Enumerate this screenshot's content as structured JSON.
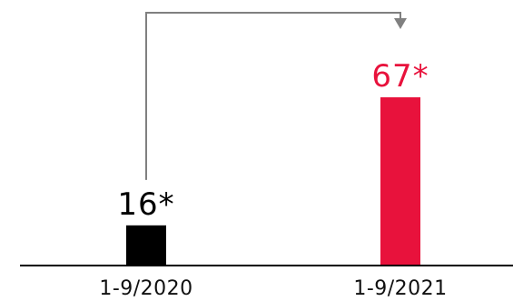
{
  "chart_data": {
    "type": "bar",
    "categories": [
      "1-9/2020",
      "1-9/2021"
    ],
    "values": [
      16,
      67
    ],
    "value_labels": [
      "16*",
      "67*"
    ],
    "bar_colors": [
      "#000000",
      "#e8123c"
    ],
    "value_label_colors": [
      "#000000",
      "#e8123c"
    ],
    "arrow_color": "#808080",
    "axis_color": "#000000",
    "grid": false,
    "title": "",
    "xlabel": "",
    "ylabel": ""
  }
}
